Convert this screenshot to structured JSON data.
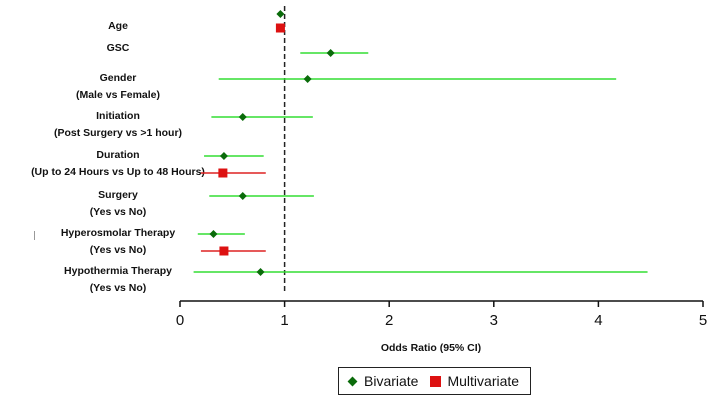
{
  "chart_data": {
    "type": "forest",
    "xlabel": "Odds Ratio (95% CI)",
    "xlim": [
      0,
      5
    ],
    "xticks": [
      "0",
      "1",
      "2",
      "3",
      "4",
      "5"
    ],
    "reference_line": 1,
    "legend": {
      "position": "bottom-center",
      "entries": [
        "Bivariate",
        "Multivariate"
      ]
    },
    "colors": {
      "bivariate_line": "#33dd33",
      "bivariate_point": "#0a6b0a",
      "multivariate_line": "#dd2222",
      "multivariate_point": "#dd1111",
      "reference_line": "#222222"
    },
    "rows": [
      {
        "label": [
          "Age"
        ],
        "bivariate": {
          "or": 0.96,
          "lo": 0.94,
          "hi": 0.99
        },
        "multivariate": {
          "or": 0.96,
          "lo": 0.94,
          "hi": 0.99
        }
      },
      {
        "label": [
          "GSC"
        ],
        "bivariate": {
          "or": 1.44,
          "lo": 1.15,
          "hi": 1.8
        },
        "multivariate": null
      },
      {
        "label": [
          "Gender",
          "(Male vs Female)"
        ],
        "bivariate": {
          "or": 1.22,
          "lo": 0.37,
          "hi": 4.17
        },
        "multivariate": null
      },
      {
        "label": [
          "Initiation",
          "(Post Surgery vs >1 hour)"
        ],
        "bivariate": {
          "or": 0.6,
          "lo": 0.3,
          "hi": 1.27
        },
        "multivariate": null
      },
      {
        "label": [
          "Duration",
          "(Up to 24 Hours vs Up to 48 Hours)"
        ],
        "bivariate": {
          "or": 0.42,
          "lo": 0.23,
          "hi": 0.8
        },
        "multivariate": {
          "or": 0.41,
          "lo": 0.2,
          "hi": 0.82
        }
      },
      {
        "label": [
          "Surgery",
          "(Yes vs No)"
        ],
        "bivariate": {
          "or": 0.6,
          "lo": 0.28,
          "hi": 1.28
        },
        "multivariate": null
      },
      {
        "label": [
          "Hyperosmolar Therapy",
          "(Yes vs No)"
        ],
        "bivariate": {
          "or": 0.32,
          "lo": 0.17,
          "hi": 0.62
        },
        "multivariate": {
          "or": 0.42,
          "lo": 0.2,
          "hi": 0.82
        }
      },
      {
        "label": [
          "Hypothermia Therapy",
          "(Yes vs No)"
        ],
        "bivariate": {
          "or": 0.77,
          "lo": 0.13,
          "hi": 4.47
        },
        "multivariate": null
      }
    ]
  }
}
